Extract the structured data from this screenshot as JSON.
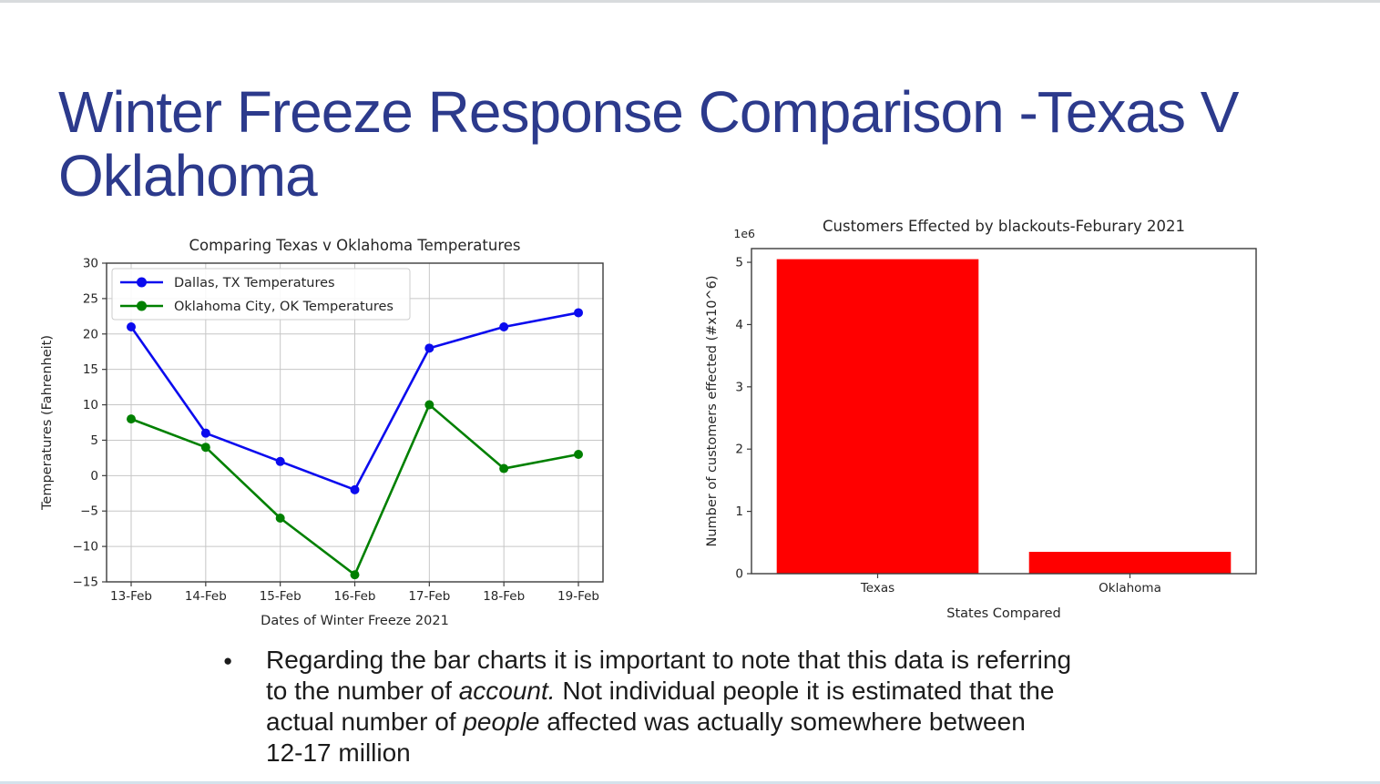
{
  "slide": {
    "title_lines": [
      "Winter Freeze Response Comparison -Texas V",
      "Oklahoma"
    ],
    "title_color": "#2c3a8c",
    "bullet": {
      "marker": "●",
      "lines": [
        [
          {
            "t": "Regarding the bar charts it is important to note that this data is referring",
            "i": false
          }
        ],
        [
          {
            "t": "to the number of ",
            "i": false
          },
          {
            "t": "account.",
            "i": true
          },
          {
            "t": " Not individual people it is estimated that the",
            "i": false
          }
        ],
        [
          {
            "t": "actual number of ",
            "i": false
          },
          {
            "t": "people",
            "i": true
          },
          {
            "t": " affected was actually somewhere between",
            "i": false
          }
        ],
        [
          {
            "t": "12-17 million",
            "i": false
          }
        ]
      ]
    }
  },
  "chart_data": [
    {
      "type": "line",
      "title": "Comparing Texas v Oklahoma Temperatures",
      "xlabel": "Dates of Winter Freeze 2021",
      "ylabel": "Temperatures (Fahrenheit)",
      "categories": [
        "13-Feb",
        "14-Feb",
        "15-Feb",
        "16-Feb",
        "17-Feb",
        "18-Feb",
        "19-Feb"
      ],
      "series": [
        {
          "name": "Dallas, TX Temperatures",
          "color": "#0b0bee",
          "values": [
            21,
            6,
            2,
            -2,
            18,
            21,
            23
          ]
        },
        {
          "name": "Oklahoma City, OK Temperatures",
          "color": "#008000",
          "values": [
            8,
            4,
            -6,
            -14,
            10,
            1,
            3
          ]
        }
      ],
      "ylim": [
        -15,
        30
      ],
      "yticks": [
        -15,
        -10,
        -5,
        0,
        5,
        10,
        15,
        20,
        25,
        30
      ],
      "grid": true,
      "legend_position": "upper-left"
    },
    {
      "type": "bar",
      "title": "Customers Effected by blackouts-Feburary 2021",
      "offset_text": "1e6",
      "xlabel": "States Compared",
      "ylabel": "Number of customers effected (#x10^6)",
      "categories": [
        "Texas",
        "Oklahoma"
      ],
      "values": [
        5050000,
        350000
      ],
      "bar_color": "#ff0000",
      "ylim": [
        0,
        5220000
      ],
      "yticks": [
        0,
        1,
        2,
        3,
        4,
        5
      ],
      "ytick_scale": 1000000,
      "grid": false,
      "legend_position": "none"
    }
  ]
}
